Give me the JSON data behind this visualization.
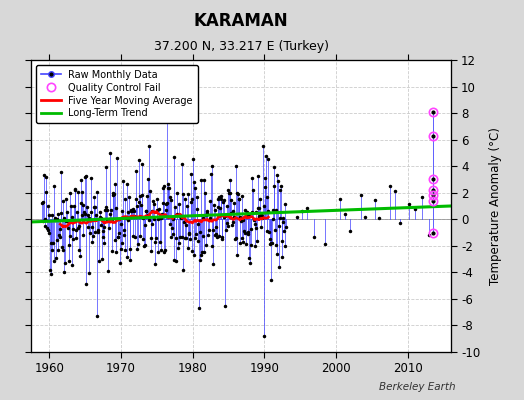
{
  "title": "KARAMAN",
  "subtitle": "37.200 N, 33.217 E (Turkey)",
  "ylabel": "Temperature Anomaly (°C)",
  "xlabel_ticks": [
    1960,
    1970,
    1980,
    1990,
    2000,
    2010
  ],
  "ylim": [
    -10,
    12
  ],
  "xlim": [
    1957.5,
    2016
  ],
  "yticks": [
    -10,
    -8,
    -6,
    -4,
    -2,
    0,
    2,
    4,
    6,
    8,
    10,
    12
  ],
  "fig_background": "#d8d8d8",
  "plot_background": "#ffffff",
  "line_color_raw": "#4444ff",
  "marker_color_raw": "#000000",
  "line_color_ma": "#ff0000",
  "line_color_trend": "#00bb00",
  "qc_fail_color": "#ff44ff",
  "watermark": "Berkeley Earth",
  "seed": 42,
  "qc_x": 2013.5,
  "qc_y": [
    8.1,
    6.3,
    3.0,
    2.2,
    1.8,
    1.4,
    -1.0
  ]
}
